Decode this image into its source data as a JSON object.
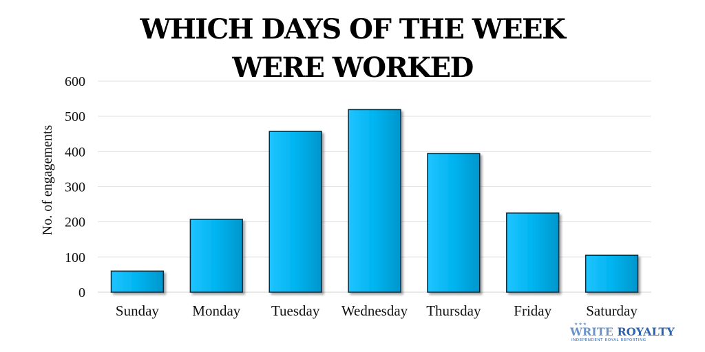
{
  "chart_data": {
    "type": "bar",
    "title_lines": [
      "WHICH DAYS OF THE WEEK",
      "WERE WORKED"
    ],
    "ylabel": "No. of engagements",
    "xlabel": "",
    "categories": [
      "Sunday",
      "Monday",
      "Tuesday",
      "Wednesday",
      "Thursday",
      "Friday",
      "Saturday"
    ],
    "values": [
      60,
      207,
      457,
      519,
      394,
      225,
      105
    ],
    "ylim": [
      0,
      600
    ],
    "yticks": [
      0,
      100,
      200,
      300,
      400,
      500,
      600
    ],
    "grid": true,
    "bar_color": "#00b4f0",
    "bar_edge_color": "#0a2a3a"
  },
  "logo": {
    "part1": "WRITE",
    "part2": "ROYALTY",
    "tagline": "INDEPENDENT ROYAL REPORTING",
    "stars": "★★★"
  }
}
